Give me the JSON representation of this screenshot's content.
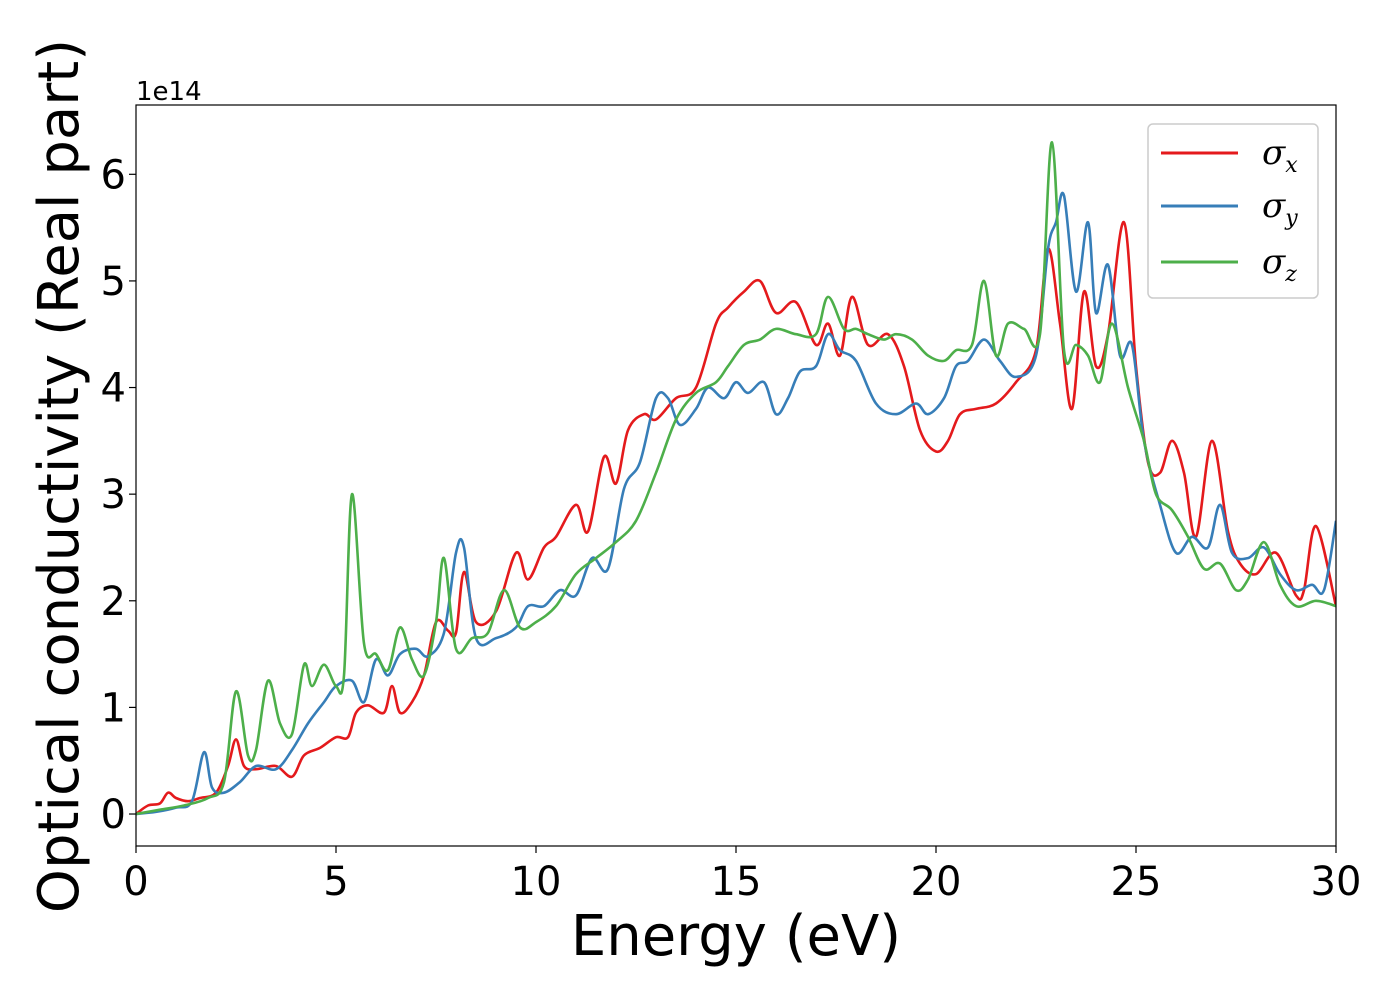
{
  "chart_data": {
    "type": "line",
    "xlabel": "Energy (eV)",
    "ylabel": "Optical conductivity (Real part)",
    "y_offset_label": "1e14",
    "xlim": [
      0,
      30
    ],
    "ylim": [
      -0.3,
      6.65
    ],
    "xticks": [
      0,
      5,
      10,
      15,
      20,
      25,
      30
    ],
    "xtick_labels": [
      "0",
      "5",
      "10",
      "15",
      "20",
      "25",
      "30"
    ],
    "yticks": [
      0,
      1,
      2,
      3,
      4,
      5,
      6
    ],
    "ytick_labels": [
      "0",
      "1",
      "2",
      "3",
      "4",
      "5",
      "6"
    ],
    "grid": false,
    "legend_position": "top-right",
    "series": [
      {
        "name": "σx",
        "legend_base": "σ",
        "legend_sub": "x",
        "color": "#e41a1c",
        "x": [
          0,
          0.3,
          0.6,
          0.8,
          1.0,
          1.3,
          1.6,
          2.0,
          2.3,
          2.5,
          2.7,
          3.0,
          3.5,
          3.9,
          4.2,
          4.6,
          5.0,
          5.3,
          5.5,
          5.8,
          6.2,
          6.4,
          6.6,
          6.9,
          7.2,
          7.5,
          7.8,
          8.0,
          8.2,
          8.5,
          9.0,
          9.5,
          9.8,
          10.2,
          10.5,
          11.0,
          11.3,
          11.7,
          12.0,
          12.3,
          12.7,
          13.0,
          13.5,
          14.0,
          14.5,
          14.8,
          15.2,
          15.6,
          16.0,
          16.5,
          17.0,
          17.3,
          17.6,
          17.9,
          18.3,
          18.8,
          19.2,
          19.6,
          20.0,
          20.3,
          20.6,
          21.0,
          21.5,
          22.0,
          22.5,
          22.8,
          23.1,
          23.4,
          23.7,
          24.0,
          24.3,
          24.7,
          25.0,
          25.3,
          25.6,
          25.9,
          26.2,
          26.5,
          26.9,
          27.3,
          27.6,
          28.0,
          28.5,
          29.0,
          29.2,
          29.5,
          30.0
        ],
        "y": [
          0.0,
          0.08,
          0.1,
          0.2,
          0.15,
          0.12,
          0.15,
          0.2,
          0.45,
          0.7,
          0.45,
          0.42,
          0.45,
          0.35,
          0.55,
          0.62,
          0.72,
          0.72,
          0.95,
          1.02,
          0.95,
          1.2,
          0.95,
          1.05,
          1.3,
          1.8,
          1.72,
          1.7,
          2.27,
          1.8,
          1.9,
          2.45,
          2.2,
          2.5,
          2.6,
          2.9,
          2.65,
          3.35,
          3.1,
          3.6,
          3.75,
          3.7,
          3.9,
          4.0,
          4.6,
          4.75,
          4.9,
          5.0,
          4.7,
          4.8,
          4.4,
          4.6,
          4.3,
          4.85,
          4.4,
          4.5,
          4.2,
          3.6,
          3.4,
          3.5,
          3.75,
          3.8,
          3.85,
          4.05,
          4.35,
          5.3,
          4.6,
          3.8,
          4.9,
          4.2,
          4.5,
          5.55,
          4.2,
          3.3,
          3.2,
          3.5,
          3.2,
          2.6,
          3.5,
          2.65,
          2.35,
          2.25,
          2.45,
          2.05,
          2.1,
          2.7,
          1.95
        ]
      },
      {
        "name": "σy",
        "legend_base": "σ",
        "legend_sub": "y",
        "color": "#377eb8",
        "x": [
          0,
          0.5,
          1.0,
          1.4,
          1.7,
          1.9,
          2.2,
          2.6,
          3.0,
          3.5,
          3.9,
          4.3,
          4.7,
          5.0,
          5.4,
          5.7,
          6.0,
          6.3,
          6.6,
          7.0,
          7.3,
          7.7,
          8.0,
          8.2,
          8.5,
          9.0,
          9.5,
          9.8,
          10.2,
          10.6,
          11.0,
          11.4,
          11.8,
          12.2,
          12.6,
          13.0,
          13.3,
          13.6,
          14.0,
          14.3,
          14.7,
          15.0,
          15.3,
          15.7,
          16.0,
          16.3,
          16.6,
          17.0,
          17.3,
          17.6,
          18.0,
          18.5,
          19.0,
          19.5,
          19.8,
          20.2,
          20.5,
          20.8,
          21.2,
          21.6,
          22.0,
          22.5,
          22.8,
          23.0,
          23.2,
          23.5,
          23.8,
          24.0,
          24.3,
          24.6,
          24.9,
          25.2,
          25.6,
          26.0,
          26.4,
          26.8,
          27.1,
          27.4,
          27.8,
          28.2,
          28.6,
          29.0,
          29.4,
          29.7,
          30.0
        ],
        "y": [
          0.0,
          0.02,
          0.06,
          0.12,
          0.58,
          0.25,
          0.2,
          0.3,
          0.45,
          0.42,
          0.6,
          0.85,
          1.05,
          1.2,
          1.25,
          1.05,
          1.45,
          1.3,
          1.5,
          1.55,
          1.48,
          1.7,
          2.45,
          2.5,
          1.65,
          1.65,
          1.75,
          1.95,
          1.95,
          2.1,
          2.05,
          2.4,
          2.3,
          3.05,
          3.3,
          3.9,
          3.9,
          3.65,
          3.8,
          4.0,
          3.9,
          4.05,
          3.95,
          4.05,
          3.75,
          3.9,
          4.15,
          4.2,
          4.5,
          4.35,
          4.25,
          3.85,
          3.75,
          3.85,
          3.75,
          3.9,
          4.2,
          4.25,
          4.45,
          4.25,
          4.1,
          4.3,
          5.3,
          5.55,
          5.8,
          4.9,
          5.55,
          4.7,
          5.15,
          4.3,
          4.4,
          3.5,
          2.9,
          2.45,
          2.6,
          2.5,
          2.9,
          2.45,
          2.4,
          2.5,
          2.25,
          2.1,
          2.15,
          2.1,
          2.75
        ]
      },
      {
        "name": "σz",
        "legend_base": "σ",
        "legend_sub": "z",
        "color": "#4daf4a",
        "x": [
          0,
          0.6,
          1.2,
          1.8,
          2.2,
          2.5,
          2.8,
          3.0,
          3.3,
          3.6,
          3.9,
          4.2,
          4.4,
          4.7,
          5.0,
          5.2,
          5.4,
          5.7,
          6.0,
          6.3,
          6.6,
          6.9,
          7.2,
          7.5,
          7.7,
          8.0,
          8.4,
          8.8,
          9.2,
          9.6,
          10.0,
          10.5,
          11.0,
          11.5,
          12.0,
          12.5,
          13.0,
          13.5,
          14.0,
          14.5,
          14.8,
          15.2,
          15.6,
          16.0,
          16.5,
          17.0,
          17.3,
          17.7,
          18.0,
          18.3,
          18.7,
          19.0,
          19.4,
          19.8,
          20.2,
          20.5,
          20.9,
          21.2,
          21.5,
          21.8,
          22.2,
          22.6,
          22.9,
          23.2,
          23.5,
          23.8,
          24.1,
          24.4,
          24.8,
          25.2,
          25.5,
          25.9,
          26.3,
          26.7,
          27.1,
          27.5,
          27.8,
          28.2,
          28.6,
          29.0,
          29.5,
          30.0
        ],
        "y": [
          0.0,
          0.04,
          0.08,
          0.15,
          0.3,
          1.15,
          0.55,
          0.6,
          1.25,
          0.85,
          0.75,
          1.4,
          1.2,
          1.4,
          1.2,
          1.3,
          3.0,
          1.6,
          1.5,
          1.35,
          1.75,
          1.45,
          1.3,
          1.8,
          2.4,
          1.55,
          1.65,
          1.7,
          2.1,
          1.75,
          1.8,
          1.95,
          2.25,
          2.4,
          2.55,
          2.75,
          3.2,
          3.7,
          3.95,
          4.05,
          4.2,
          4.4,
          4.45,
          4.55,
          4.5,
          4.5,
          4.85,
          4.55,
          4.55,
          4.5,
          4.45,
          4.5,
          4.45,
          4.3,
          4.25,
          4.35,
          4.4,
          5.0,
          4.3,
          4.6,
          4.55,
          4.5,
          6.3,
          4.35,
          4.4,
          4.3,
          4.05,
          4.6,
          4.0,
          3.5,
          3.0,
          2.85,
          2.6,
          2.3,
          2.35,
          2.1,
          2.2,
          2.55,
          2.15,
          1.95,
          2.0,
          1.95
        ]
      }
    ]
  }
}
